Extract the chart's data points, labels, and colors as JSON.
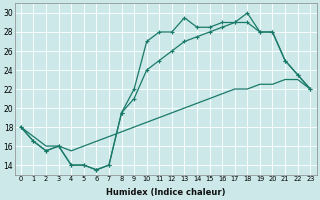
{
  "xlabel": "Humidex (Indice chaleur)",
  "background_color": "#cce8e8",
  "line_color": "#1a7a6a",
  "xlim": [
    -0.5,
    23.5
  ],
  "ylim": [
    13,
    31
  ],
  "yticks": [
    14,
    16,
    18,
    20,
    22,
    24,
    26,
    28,
    30
  ],
  "xticks": [
    0,
    1,
    2,
    3,
    4,
    5,
    6,
    7,
    8,
    9,
    10,
    11,
    12,
    13,
    14,
    15,
    16,
    17,
    18,
    19,
    20,
    21,
    22,
    23
  ],
  "series_A_x": [
    0,
    1,
    2,
    3,
    4,
    5,
    6,
    7,
    8,
    9,
    10,
    11,
    12,
    13,
    14,
    15,
    16,
    17,
    18,
    19,
    20,
    21,
    22,
    23
  ],
  "series_A_y": [
    18,
    17,
    16,
    16,
    15.5,
    16,
    16.5,
    17,
    17.5,
    18,
    18.5,
    19,
    19.5,
    20,
    20.5,
    21,
    21.5,
    22,
    22,
    22.5,
    22.5,
    23,
    23,
    22
  ],
  "series_B_x": [
    0,
    1,
    2,
    3,
    4,
    5,
    6,
    7,
    8,
    9,
    10,
    11,
    12,
    13,
    14,
    15,
    16,
    17,
    18,
    19,
    20,
    21,
    22,
    23
  ],
  "series_B_y": [
    18,
    16.5,
    15.5,
    16,
    14,
    14,
    13.5,
    14,
    19.5,
    22,
    27,
    28,
    28,
    29.5,
    28.5,
    28.5,
    29,
    29,
    30,
    28,
    28,
    25,
    23.5,
    22
  ],
  "series_C_x": [
    0,
    1,
    2,
    3,
    4,
    5,
    6,
    7,
    8,
    9,
    10,
    11,
    12,
    13,
    14,
    15,
    16,
    17,
    18,
    19,
    20,
    21,
    22,
    23
  ],
  "series_C_y": [
    18,
    16.5,
    15.5,
    16,
    14,
    14,
    13.5,
    14,
    19.5,
    21,
    24,
    25,
    26,
    27,
    27.5,
    28,
    28.5,
    29,
    29,
    28,
    28,
    25,
    23.5,
    22
  ]
}
